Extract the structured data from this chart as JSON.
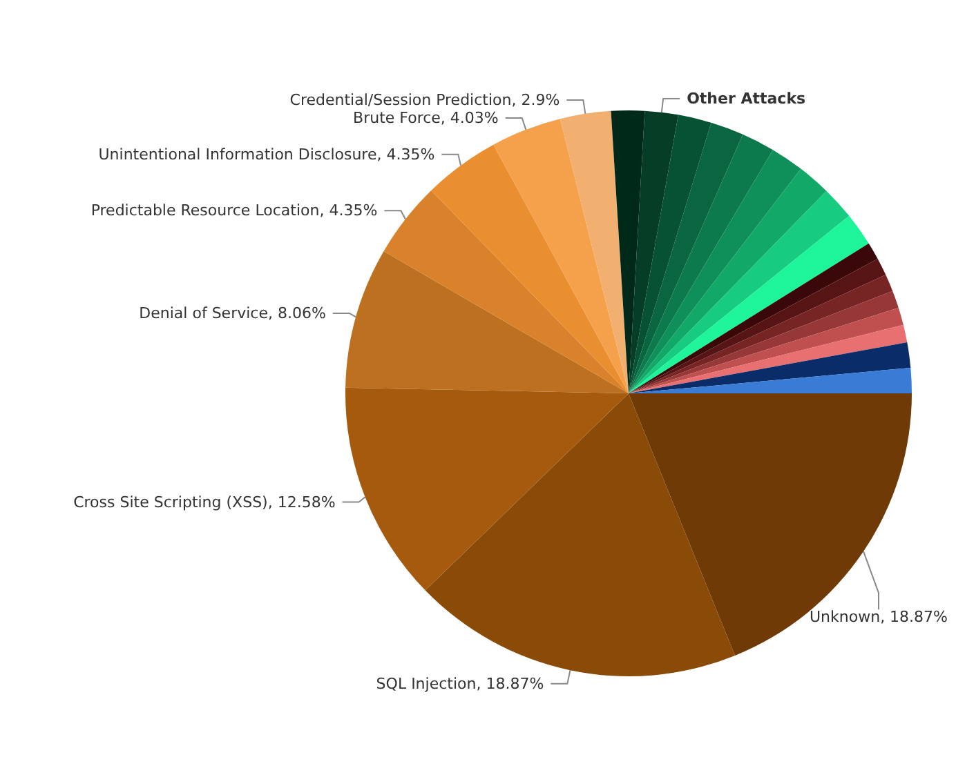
{
  "chart_data": {
    "type": "pie",
    "categories": [
      "Unknown",
      "SQL Injection",
      "Cross Site Scripting (XSS)",
      "Denial of Service",
      "Predictable Resource Location",
      "Unintentional Information Disclosure",
      "Brute Force",
      "Credential/Session Prediction",
      null,
      "Other Attacks",
      null,
      null,
      null,
      null,
      null,
      null,
      null,
      null,
      null,
      null,
      null,
      null,
      null,
      null,
      null
    ],
    "values": [
      18.87,
      18.87,
      12.58,
      8.06,
      4.35,
      4.35,
      4.03,
      2.9,
      1.9,
      1.9,
      1.9,
      1.9,
      1.9,
      1.9,
      1.9,
      1.9,
      1.9,
      1.0,
      1.0,
      1.0,
      1.0,
      1.0,
      1.0,
      1.45,
      1.44
    ],
    "value_labels": [
      "18.87%",
      "18.87%",
      "12.58%",
      "8.06%",
      "4.35%",
      "4.35%",
      "4.03%",
      "2.9%",
      null,
      null,
      null,
      null,
      null,
      null,
      null,
      null,
      null,
      null,
      null,
      null,
      null,
      null,
      null,
      null,
      null
    ],
    "colors": [
      "#6f3a05",
      "#8a4a08",
      "#a55a0e",
      "#bd7020",
      "#d9822b",
      "#ea8f30",
      "#f5a04a",
      "#f2b070",
      "#00291a",
      "#053d27",
      "#075233",
      "#0a6640",
      "#0c7a4d",
      "#0f8f5a",
      "#12a867",
      "#17cc80",
      "#1ef59a",
      "#3a0808",
      "#561414",
      "#762424",
      "#963838",
      "#c05050",
      "#e87070",
      "#0a2d6a",
      "#3a7bd5"
    ],
    "legend": false
  }
}
